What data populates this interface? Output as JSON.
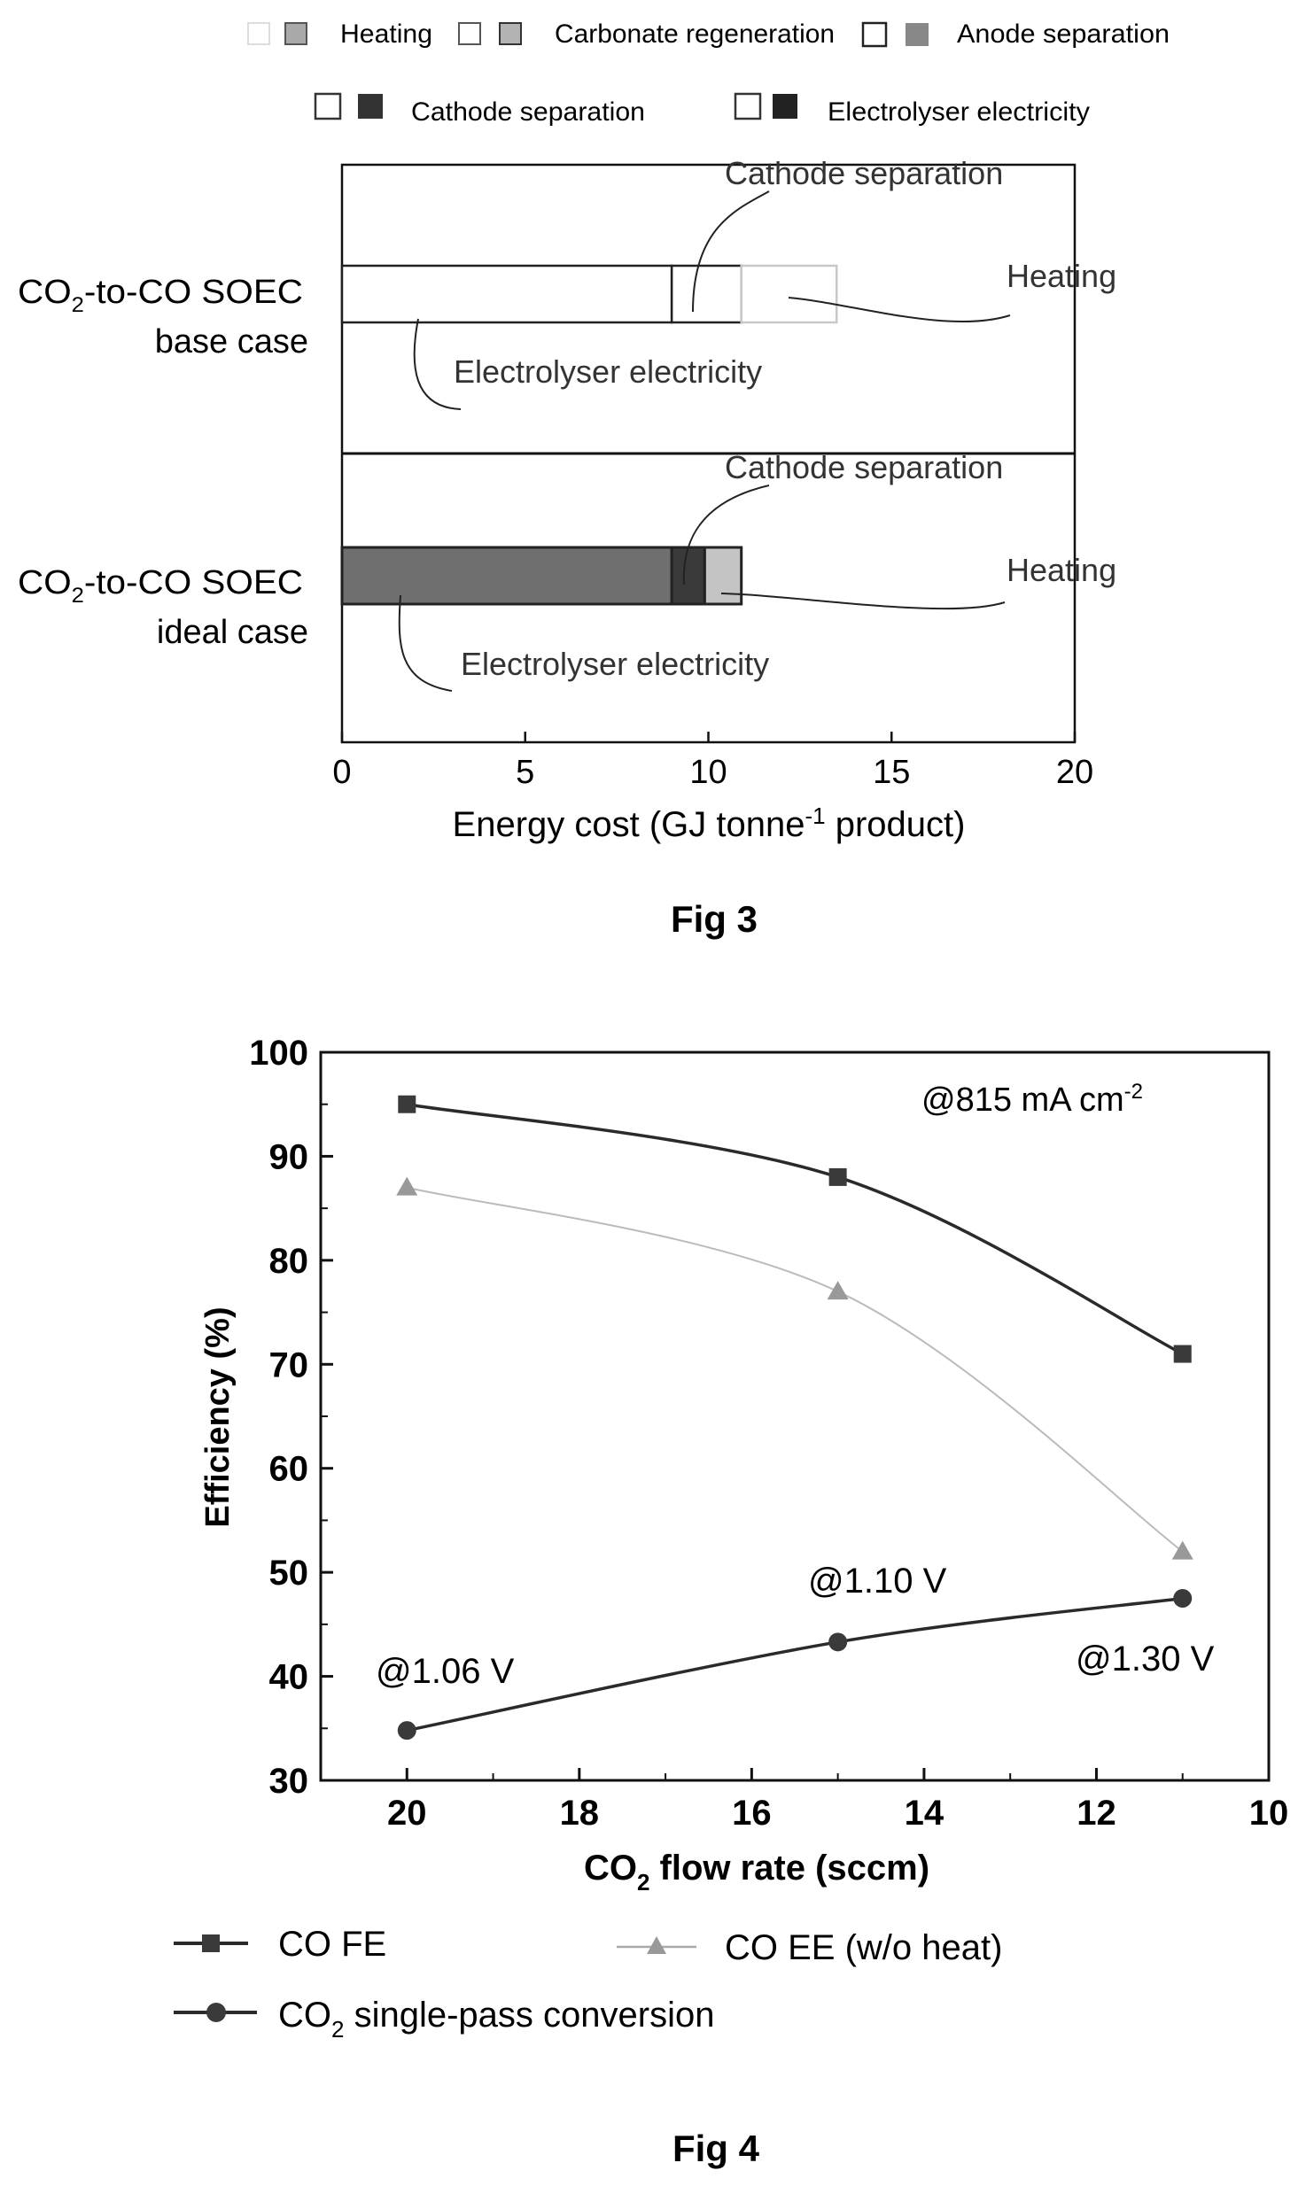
{
  "fig3": {
    "caption": "Fig 3",
    "legend": [
      "Heating",
      "Carbonate regeneration",
      "Anode separation",
      "Cathode separation",
      "Electrolyser electricity"
    ],
    "categories": [
      {
        "line1": "CO",
        "sub": "2",
        "line1b": "-to-CO SOEC",
        "line2": "base case"
      },
      {
        "line1": "CO",
        "sub": "2",
        "line1b": "-to-CO SOEC",
        "line2": "ideal case"
      }
    ],
    "xlabel_pre": "Energy cost (GJ tonne",
    "xlabel_sup": "-1",
    "xlabel_post": " product)",
    "annotations": {
      "cathode": "Cathode separation",
      "heating": "Heating",
      "electricity": "Electrolyser electricity"
    }
  },
  "fig4": {
    "caption": "Fig 4",
    "ylabel": "Efficiency (%)",
    "xlabel_pre": "CO",
    "xlabel_sub": "2",
    "xlabel_post": " flow rate (sccm)",
    "current_label_pre": "@815 mA cm",
    "current_label_sup": "-2",
    "voltage_labels": [
      "@1.06 V",
      "@1.10 V",
      "@1.30 V"
    ],
    "legend": {
      "fe": "CO FE",
      "ee": "CO EE (w/o heat)",
      "conv_pre": "CO",
      "conv_sub": "2",
      "conv_post": " single-pass conversion"
    }
  },
  "chart_data": [
    {
      "type": "bar",
      "orientation": "horizontal",
      "stacked": true,
      "categories": [
        "CO2-to-CO SOEC base case",
        "CO2-to-CO SOEC ideal case"
      ],
      "series": [
        {
          "name": "Electrolyser electricity",
          "values": [
            9.0,
            9.0
          ],
          "colors": [
            "#ffffff",
            "#6f6f6f"
          ]
        },
        {
          "name": "Cathode separation",
          "values": [
            1.9,
            0.9
          ],
          "colors": [
            "#ffffff",
            "#3a3a3a"
          ]
        },
        {
          "name": "Anode separation",
          "values": [
            0,
            0
          ],
          "colors": [
            "#ffffff",
            "#8a8a8a"
          ]
        },
        {
          "name": "Carbonate regeneration",
          "values": [
            0,
            0
          ],
          "colors": [
            "#ffffff",
            "#a8a8a8"
          ]
        },
        {
          "name": "Heating",
          "values": [
            2.6,
            1.0
          ],
          "colors": [
            "#ffffff",
            "#c4c4c4"
          ]
        }
      ],
      "xlim": [
        0,
        20
      ],
      "xticks": [
        0,
        5,
        10,
        15,
        20
      ],
      "xlabel": "Energy cost (GJ tonne-1 product)",
      "legend_position": "top",
      "grid": false
    },
    {
      "type": "line",
      "x": [
        20,
        15,
        11
      ],
      "series": [
        {
          "name": "CO FE",
          "values": [
            95,
            88,
            71
          ],
          "marker": "square",
          "color": "#3a3a3a"
        },
        {
          "name": "CO EE (w/o heat)",
          "values": [
            87,
            77,
            52
          ],
          "marker": "triangle",
          "color": "#999999"
        },
        {
          "name": "CO2 single-pass conversion",
          "values": [
            34.8,
            43.3,
            47.5
          ],
          "marker": "circle",
          "color": "#3a3a3a"
        }
      ],
      "xlim": [
        21,
        10
      ],
      "xticks": [
        20,
        18,
        16,
        14,
        12,
        10
      ],
      "ylim": [
        30,
        100
      ],
      "yticks": [
        30,
        40,
        50,
        60,
        70,
        80,
        90,
        100
      ],
      "xlabel": "CO2 flow rate (sccm)",
      "ylabel": "Efficiency (%)",
      "legend_position": "bottom",
      "grid": false
    }
  ]
}
